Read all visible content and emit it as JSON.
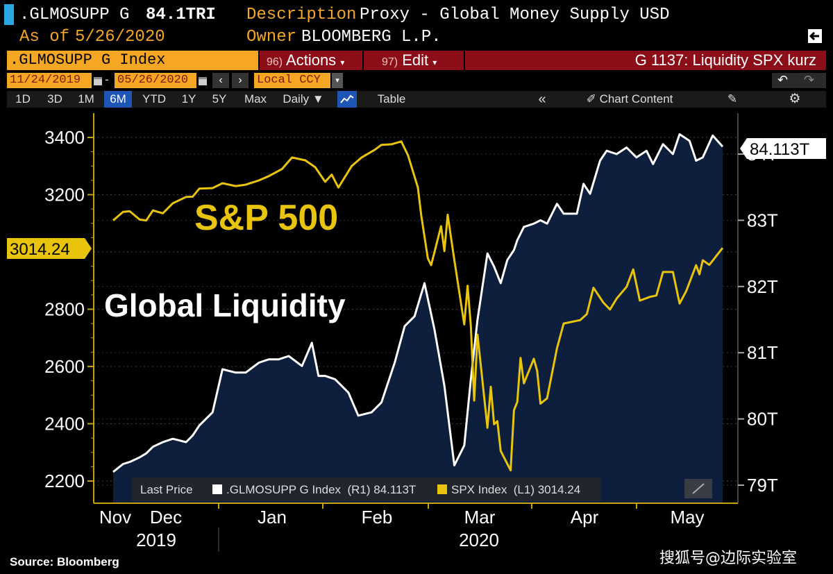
{
  "header": {
    "ticker": ".GLMOSUPP G",
    "last_value": "84.1TRI",
    "as_of_label": "As of",
    "as_of_date": "5/26/2020",
    "description_label": "Description",
    "description_value": "Proxy - Global Money Supply USD",
    "owner_label": "Owner",
    "owner_value": "BLOOMBERG L.P."
  },
  "command_bar": {
    "security": ".GLMOSUPP G Index",
    "actions_num": "96)",
    "actions_label": "Actions",
    "edit_num": "97)",
    "edit_label": "Edit",
    "chart_title": "G 1137: Liquidity SPX kurz"
  },
  "date_bar": {
    "start_date": "11/24/2019",
    "dash": "-",
    "end_date": "05/26/2020",
    "currency": "Local CCY"
  },
  "toolbar": {
    "periods": [
      "1D",
      "3D",
      "1M",
      "6M",
      "YTD",
      "1Y",
      "5Y",
      "Max"
    ],
    "active_period": "6M",
    "frequency": "Daily",
    "table_label": "Table",
    "chart_content_label": "Chart Content"
  },
  "annotations": {
    "sp500": "S&P 500",
    "global_liquidity": "Global Liquidity"
  },
  "legend": {
    "last_price": "Last Price",
    "series1": ".GLMOSUPP G Index  (R1) 84.113T",
    "series2": "SPX Index  (L1) 3014.24"
  },
  "footer": {
    "source": "Source: Bloomberg",
    "watermark": "搜狐号@边际实验室"
  },
  "colors": {
    "spx": "#e8c40c",
    "liquidity_line": "#ffffff",
    "liquidity_fill": "#0e1f3d",
    "axis": "#c8a20a",
    "accent_orange": "#f5a623",
    "title_red": "#8b0e18"
  },
  "chart_data": {
    "type": "line",
    "x_labels": [
      "Nov",
      "Dec",
      "Jan",
      "Feb",
      "Mar",
      "Apr",
      "May"
    ],
    "x_year_labels": [
      "2019",
      "2020"
    ],
    "left_axis": {
      "ticks": [
        2200,
        2400,
        2600,
        2800,
        3000,
        3200,
        3400
      ],
      "tick_labels": [
        "2200",
        "2400",
        "2600",
        "2800",
        "3200",
        "3400"
      ],
      "ylim": [
        2170,
        3500
      ],
      "last_label": "3014.24"
    },
    "right_axis": {
      "ticks": [
        79,
        80,
        81,
        82,
        83,
        84
      ],
      "tick_labels": [
        "79T",
        "80T",
        "81T",
        "82T",
        "83T",
        "84T"
      ],
      "ylim": [
        78.98,
        85.2
      ],
      "last_label": "84.113T"
    },
    "x_range": [
      "2019-11-24",
      "2020-05-26"
    ],
    "series": [
      {
        "name": "SPX Index",
        "axis": "left",
        "x": [
          "2019-11-24",
          "2019-11-27",
          "2019-11-29",
          "2019-12-02",
          "2019-12-04",
          "2019-12-06",
          "2019-12-09",
          "2019-12-12",
          "2019-12-16",
          "2019-12-18",
          "2019-12-20",
          "2019-12-24",
          "2019-12-27",
          "2019-12-31",
          "2020-01-03",
          "2020-01-07",
          "2020-01-10",
          "2020-01-14",
          "2020-01-17",
          "2020-01-21",
          "2020-01-24",
          "2020-01-27",
          "2020-01-29",
          "2020-01-31",
          "2020-02-04",
          "2020-02-07",
          "2020-02-11",
          "2020-02-13",
          "2020-02-16",
          "2020-02-19",
          "2020-02-21",
          "2020-02-24",
          "2020-02-25",
          "2020-02-27",
          "2020-02-28",
          "2020-03-02",
          "2020-03-03",
          "2020-03-04",
          "2020-03-06",
          "2020-03-09",
          "2020-03-10",
          "2020-03-11",
          "2020-03-12",
          "2020-03-13",
          "2020-03-16",
          "2020-03-17",
          "2020-03-18",
          "2020-03-19",
          "2020-03-20",
          "2020-03-23",
          "2020-03-24",
          "2020-03-25",
          "2020-03-26",
          "2020-03-27",
          "2020-03-30",
          "2020-03-31",
          "2020-04-01",
          "2020-04-03",
          "2020-04-06",
          "2020-04-08",
          "2020-04-13",
          "2020-04-15",
          "2020-04-17",
          "2020-04-20",
          "2020-04-22",
          "2020-04-24",
          "2020-04-27",
          "2020-04-29",
          "2020-05-01",
          "2020-05-04",
          "2020-05-06",
          "2020-05-08",
          "2020-05-11",
          "2020-05-13",
          "2020-05-15",
          "2020-05-18",
          "2020-05-19",
          "2020-05-20",
          "2020-05-22",
          "2020-05-26"
        ],
        "values": [
          3110,
          3140,
          3142,
          3113,
          3110,
          3145,
          3135,
          3170,
          3192,
          3193,
          3221,
          3223,
          3240,
          3230,
          3235,
          3250,
          3265,
          3290,
          3330,
          3320,
          3296,
          3245,
          3270,
          3225,
          3300,
          3330,
          3357,
          3374,
          3376,
          3386,
          3338,
          3225,
          3128,
          2978,
          2954,
          3090,
          3003,
          3130,
          2972,
          2747,
          2882,
          2741,
          2481,
          2711,
          2386,
          2529,
          2398,
          2409,
          2305,
          2237,
          2447,
          2476,
          2630,
          2541,
          2627,
          2585,
          2470,
          2489,
          2664,
          2750,
          2762,
          2783,
          2875,
          2823,
          2799,
          2837,
          2878,
          2939,
          2830,
          2843,
          2848,
          2930,
          2930,
          2820,
          2863,
          2954,
          2922,
          2971,
          2955,
          3014
        ]
      },
      {
        "name": ".GLMOSUPP G Index",
        "axis": "right",
        "x": [
          "2019-11-24",
          "2019-11-27",
          "2019-11-29",
          "2019-12-02",
          "2019-12-04",
          "2019-12-06",
          "2019-12-09",
          "2019-12-12",
          "2019-12-16",
          "2019-12-18",
          "2019-12-20",
          "2019-12-24",
          "2019-12-27",
          "2019-12-31",
          "2020-01-03",
          "2020-01-07",
          "2020-01-10",
          "2020-01-13",
          "2020-01-16",
          "2020-01-20",
          "2020-01-23",
          "2020-01-25",
          "2020-01-27",
          "2020-01-30",
          "2020-02-03",
          "2020-02-06",
          "2020-02-10",
          "2020-02-13",
          "2020-02-17",
          "2020-02-20",
          "2020-02-23",
          "2020-02-26",
          "2020-02-29",
          "2020-03-03",
          "2020-03-06",
          "2020-03-09",
          "2020-03-11",
          "2020-03-13",
          "2020-03-16",
          "2020-03-18",
          "2020-03-20",
          "2020-03-22",
          "2020-03-24",
          "2020-03-25",
          "2020-03-27",
          "2020-03-30",
          "2020-04-01",
          "2020-04-03",
          "2020-04-06",
          "2020-04-08",
          "2020-04-12",
          "2020-04-14",
          "2020-04-16",
          "2020-04-19",
          "2020-04-21",
          "2020-04-24",
          "2020-04-27",
          "2020-04-30",
          "2020-05-03",
          "2020-05-05",
          "2020-05-08",
          "2020-05-11",
          "2020-05-13",
          "2020-05-16",
          "2020-05-18",
          "2020-05-20",
          "2020-05-23",
          "2020-05-26"
        ],
        "values": [
          79.2,
          79.32,
          79.35,
          79.42,
          79.48,
          79.58,
          79.65,
          79.7,
          79.65,
          79.75,
          79.9,
          80.1,
          80.75,
          80.7,
          80.7,
          80.85,
          80.9,
          80.9,
          80.95,
          80.8,
          81.15,
          80.65,
          80.65,
          80.6,
          80.4,
          80.05,
          80.1,
          80.25,
          80.85,
          81.4,
          81.55,
          82.05,
          81.35,
          80.5,
          79.3,
          79.6,
          80.6,
          81.5,
          82.5,
          82.3,
          82.05,
          82.4,
          82.55,
          82.7,
          82.9,
          82.95,
          83.0,
          82.95,
          83.25,
          83.1,
          83.1,
          83.55,
          83.4,
          83.9,
          84.05,
          84.0,
          84.1,
          83.95,
          84.05,
          83.85,
          84.15,
          84.0,
          84.3,
          84.2,
          83.9,
          83.95,
          84.28,
          84.113
        ]
      }
    ]
  }
}
